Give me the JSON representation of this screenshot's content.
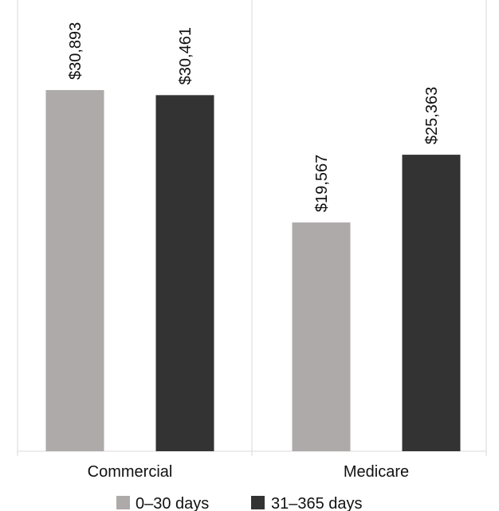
{
  "chart_data": {
    "type": "bar",
    "categories": [
      "Commercial",
      "Medicare"
    ],
    "series": [
      {
        "name": "0–30 days",
        "values": [
          30893,
          19567
        ],
        "labels": [
          "$30,893",
          "$19,567"
        ],
        "color": "#aeaaaa"
      },
      {
        "name": "31–365 days",
        "values": [
          30461,
          25363
        ],
        "labels": [
          "$30,461",
          "$25,363"
        ],
        "color": "#333333"
      }
    ],
    "title": "",
    "xlabel": "",
    "ylabel": "",
    "ylim": [
      0,
      36000
    ],
    "grid": false,
    "legend_position": "bottom"
  }
}
